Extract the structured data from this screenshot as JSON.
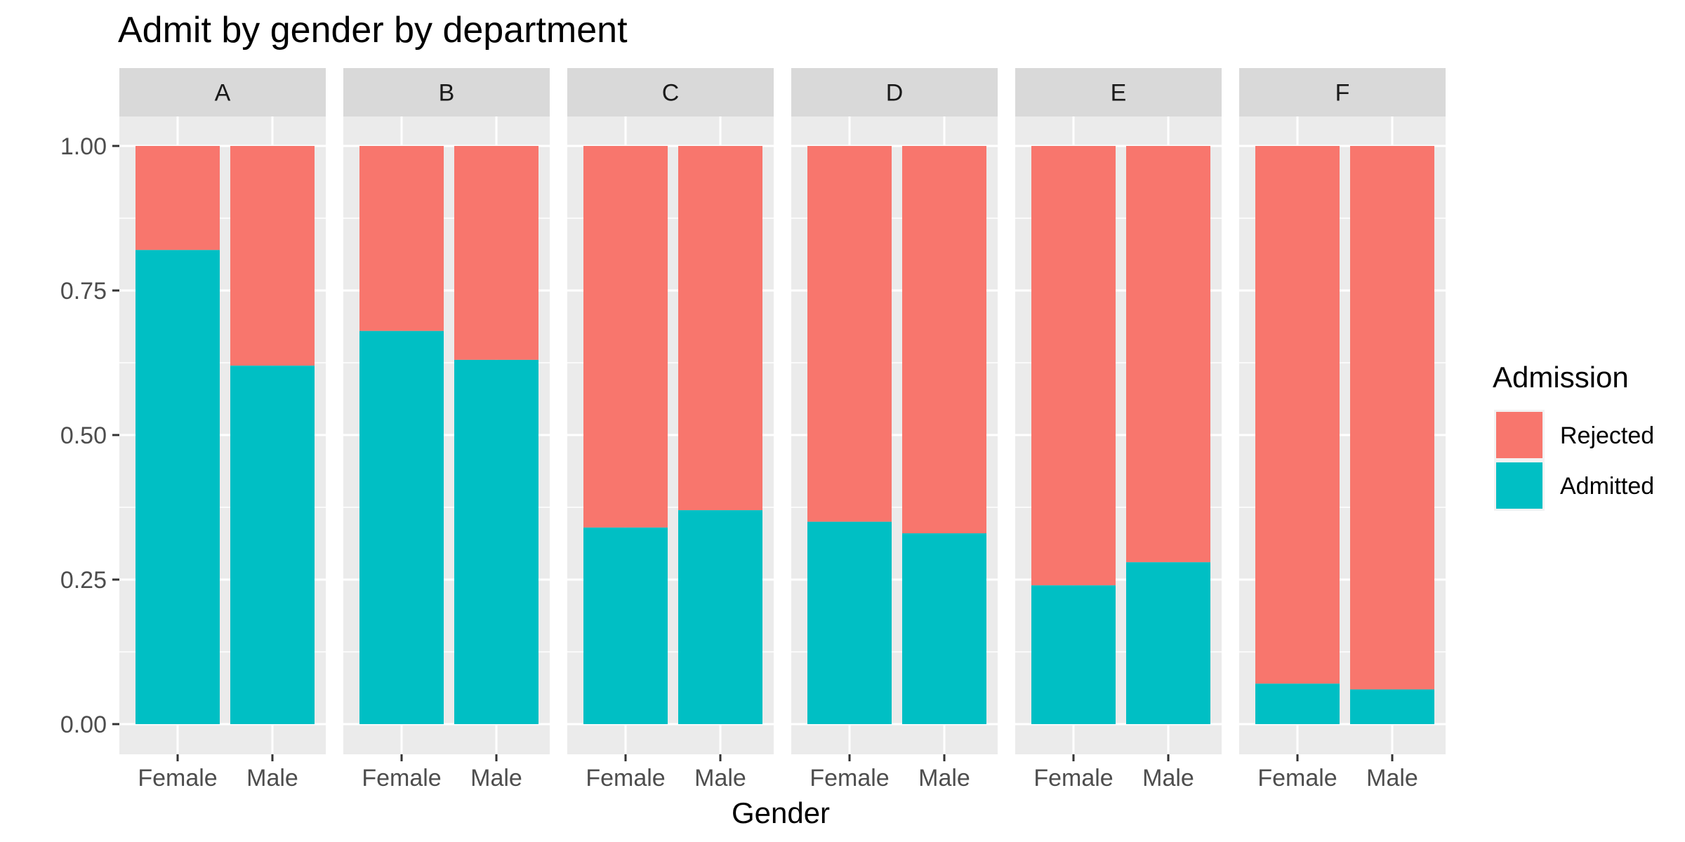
{
  "chart_data": {
    "type": "bar",
    "stacked": true,
    "title": "Admit by gender by department",
    "xlabel": "Gender",
    "ylabel": "",
    "ylim": [
      0,
      1
    ],
    "y_ticks": [
      "0.00",
      "0.25",
      "0.50",
      "0.75",
      "1.00"
    ],
    "y_tick_values": [
      0,
      0.25,
      0.5,
      0.75,
      1.0
    ],
    "categories": [
      "Female",
      "Male"
    ],
    "facets": [
      "A",
      "B",
      "C",
      "D",
      "E",
      "F"
    ],
    "grid": true,
    "legend": {
      "title": "Admission",
      "position": "right",
      "entries": [
        {
          "label": "Rejected",
          "color": "#F8766D"
        },
        {
          "label": "Admitted",
          "color": "#00BFC4"
        }
      ]
    },
    "series": [
      {
        "name": "Admitted",
        "color": "#00BFC4",
        "values": {
          "A": [
            0.82,
            0.62
          ],
          "B": [
            0.68,
            0.63
          ],
          "C": [
            0.34,
            0.37
          ],
          "D": [
            0.35,
            0.33
          ],
          "E": [
            0.24,
            0.28
          ],
          "F": [
            0.07,
            0.06
          ]
        }
      },
      {
        "name": "Rejected",
        "color": "#F8766D",
        "values": {
          "A": [
            0.18,
            0.38
          ],
          "B": [
            0.32,
            0.37
          ],
          "C": [
            0.66,
            0.63
          ],
          "D": [
            0.65,
            0.67
          ],
          "E": [
            0.76,
            0.72
          ],
          "F": [
            0.93,
            0.94
          ]
        }
      }
    ]
  },
  "colors": {
    "panel_background": "#EBEBEB",
    "strip_background": "#D9D9D9",
    "grid_line": "#FFFFFF",
    "rejected": "#F8766D",
    "admitted": "#00BFC4"
  }
}
